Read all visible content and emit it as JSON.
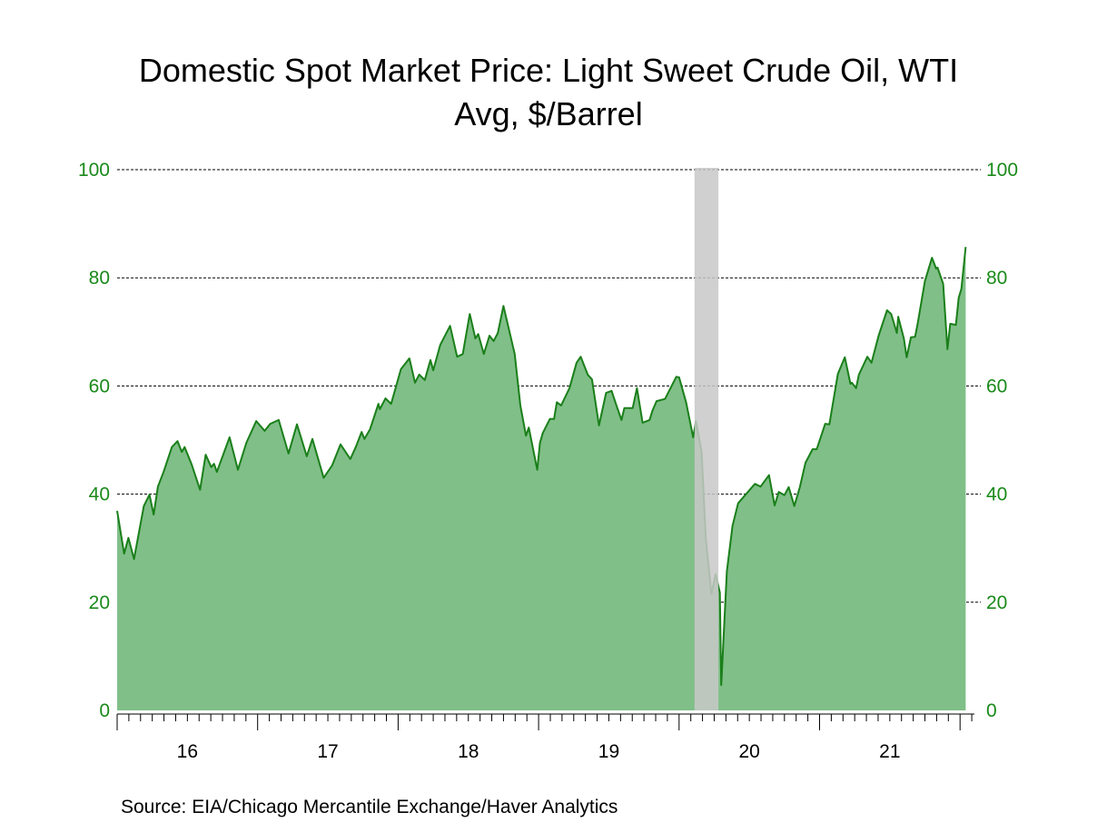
{
  "chart_data": {
    "type": "area",
    "title": "Domestic Spot Market Price: Light Sweet Crude Oil, WTI",
    "subtitle": "Avg, $/Barrel",
    "xlabel": "",
    "ylabel": "",
    "ylim": [
      0,
      100
    ],
    "xlim": [
      2016.0,
      2022.1
    ],
    "y_ticks": [
      "0",
      "20",
      "40",
      "60",
      "80",
      "100"
    ],
    "y_tick_values": [
      0,
      20,
      40,
      60,
      80,
      100
    ],
    "x_tick_labels": [
      "16",
      "17",
      "18",
      "19",
      "20",
      "21"
    ],
    "x_tick_years": [
      2016,
      2017,
      2018,
      2019,
      2020,
      2021
    ],
    "grid": true,
    "dual_y_axis": true,
    "recession_shading": {
      "start": 2020.11,
      "end": 2020.28,
      "color": "#c8c8c8"
    },
    "colors": {
      "line": "#1a7f1a",
      "fill": "#80bf88",
      "ticks": "#1a8a1a"
    },
    "series": [
      {
        "x": [
          2016.0,
          2016.05,
          2016.08,
          2016.12,
          2016.19,
          2016.23,
          2016.26,
          2016.29,
          2016.33,
          2016.39,
          2016.43,
          2016.46,
          2016.48,
          2016.53,
          2016.59,
          2016.63,
          2016.67,
          2016.69,
          2016.71,
          2016.8,
          2016.86,
          2016.92,
          2016.99,
          2017.05,
          2017.09,
          2017.15,
          2017.22,
          2017.28,
          2017.35,
          2017.39,
          2017.47,
          2017.53,
          2017.59,
          2017.66,
          2017.7,
          2017.74,
          2017.76,
          2017.8,
          2017.86,
          2017.87,
          2017.91,
          2017.95,
          2018.02,
          2018.08,
          2018.12,
          2018.15,
          2018.19,
          2018.23,
          2018.25,
          2018.3,
          2018.37,
          2018.42,
          2018.46,
          2018.51,
          2018.55,
          2018.57,
          2018.61,
          2018.65,
          2018.68,
          2018.71,
          2018.75,
          2018.83,
          2018.87,
          2018.91,
          2018.93,
          2018.99,
          2019.01,
          2019.03,
          2019.08,
          2019.11,
          2019.13,
          2019.16,
          2019.22,
          2019.27,
          2019.3,
          2019.35,
          2019.38,
          2019.43,
          2019.48,
          2019.52,
          2019.55,
          2019.59,
          2019.61,
          2019.67,
          2019.7,
          2019.74,
          2019.79,
          2019.81,
          2019.84,
          2019.9,
          2019.98,
          2020.0,
          2020.05,
          2020.1,
          2020.12,
          2020.16,
          2020.19,
          2020.23,
          2020.26,
          2020.29,
          2020.3,
          2020.34,
          2020.38,
          2020.42,
          2020.49,
          2020.54,
          2020.58,
          2020.64,
          2020.68,
          2020.71,
          2020.75,
          2020.78,
          2020.82,
          2020.86,
          2020.9,
          2020.95,
          2020.98,
          2021.04,
          2021.07,
          2021.13,
          2021.18,
          2021.22,
          2021.23,
          2021.26,
          2021.28,
          2021.34,
          2021.37,
          2021.42,
          2021.48,
          2021.51,
          2021.55,
          2021.56,
          2021.6,
          2021.62,
          2021.65,
          2021.68,
          2021.7,
          2021.75,
          2021.8,
          2021.83,
          2021.84,
          2021.88,
          2021.91,
          2021.93,
          2021.97,
          2021.99,
          2022.01,
          2022.04
        ],
        "values": [
          36.9,
          29.0,
          31.9,
          28.0,
          37.8,
          39.9,
          36.2,
          41.4,
          44.1,
          48.7,
          49.8,
          47.8,
          48.7,
          45.5,
          40.8,
          47.3,
          45.0,
          45.6,
          44.1,
          50.5,
          44.5,
          49.5,
          53.5,
          51.7,
          53.0,
          53.7,
          47.5,
          52.9,
          47.0,
          50.2,
          43.0,
          45.3,
          49.2,
          46.5,
          48.8,
          51.5,
          50.2,
          52.0,
          56.7,
          55.7,
          57.7,
          56.7,
          63.1,
          65.1,
          60.6,
          62.1,
          61.1,
          64.8,
          62.9,
          67.6,
          71.1,
          65.4,
          65.9,
          73.3,
          68.8,
          69.6,
          65.9,
          69.3,
          68.3,
          69.8,
          74.8,
          65.9,
          56.4,
          50.8,
          52.3,
          44.5,
          49.5,
          51.3,
          53.9,
          53.9,
          57.0,
          56.4,
          59.6,
          64.3,
          65.4,
          62.1,
          61.2,
          52.7,
          58.7,
          59.1,
          56.7,
          53.7,
          55.9,
          55.9,
          59.6,
          53.2,
          53.7,
          55.4,
          57.2,
          57.6,
          61.7,
          61.6,
          57.0,
          50.5,
          53.5,
          47.8,
          31.9,
          21.5,
          25.2,
          21.8,
          4.7,
          25.7,
          34.1,
          38.3,
          40.4,
          41.9,
          41.4,
          43.5,
          37.9,
          40.4,
          39.8,
          41.3,
          37.8,
          41.3,
          45.8,
          48.3,
          48.3,
          53.0,
          52.9,
          62.2,
          65.3,
          60.4,
          60.6,
          59.6,
          62.1,
          65.4,
          64.3,
          69.3,
          74.0,
          73.3,
          69.8,
          72.8,
          68.8,
          65.3,
          69.0,
          69.1,
          71.8,
          79.4,
          83.7,
          81.7,
          81.9,
          78.9,
          66.8,
          71.5,
          71.3,
          76.3,
          78.0,
          85.7
        ]
      }
    ]
  },
  "source": "Source:  EIA/Chicago Mercantile Exchange/Haver Analytics"
}
